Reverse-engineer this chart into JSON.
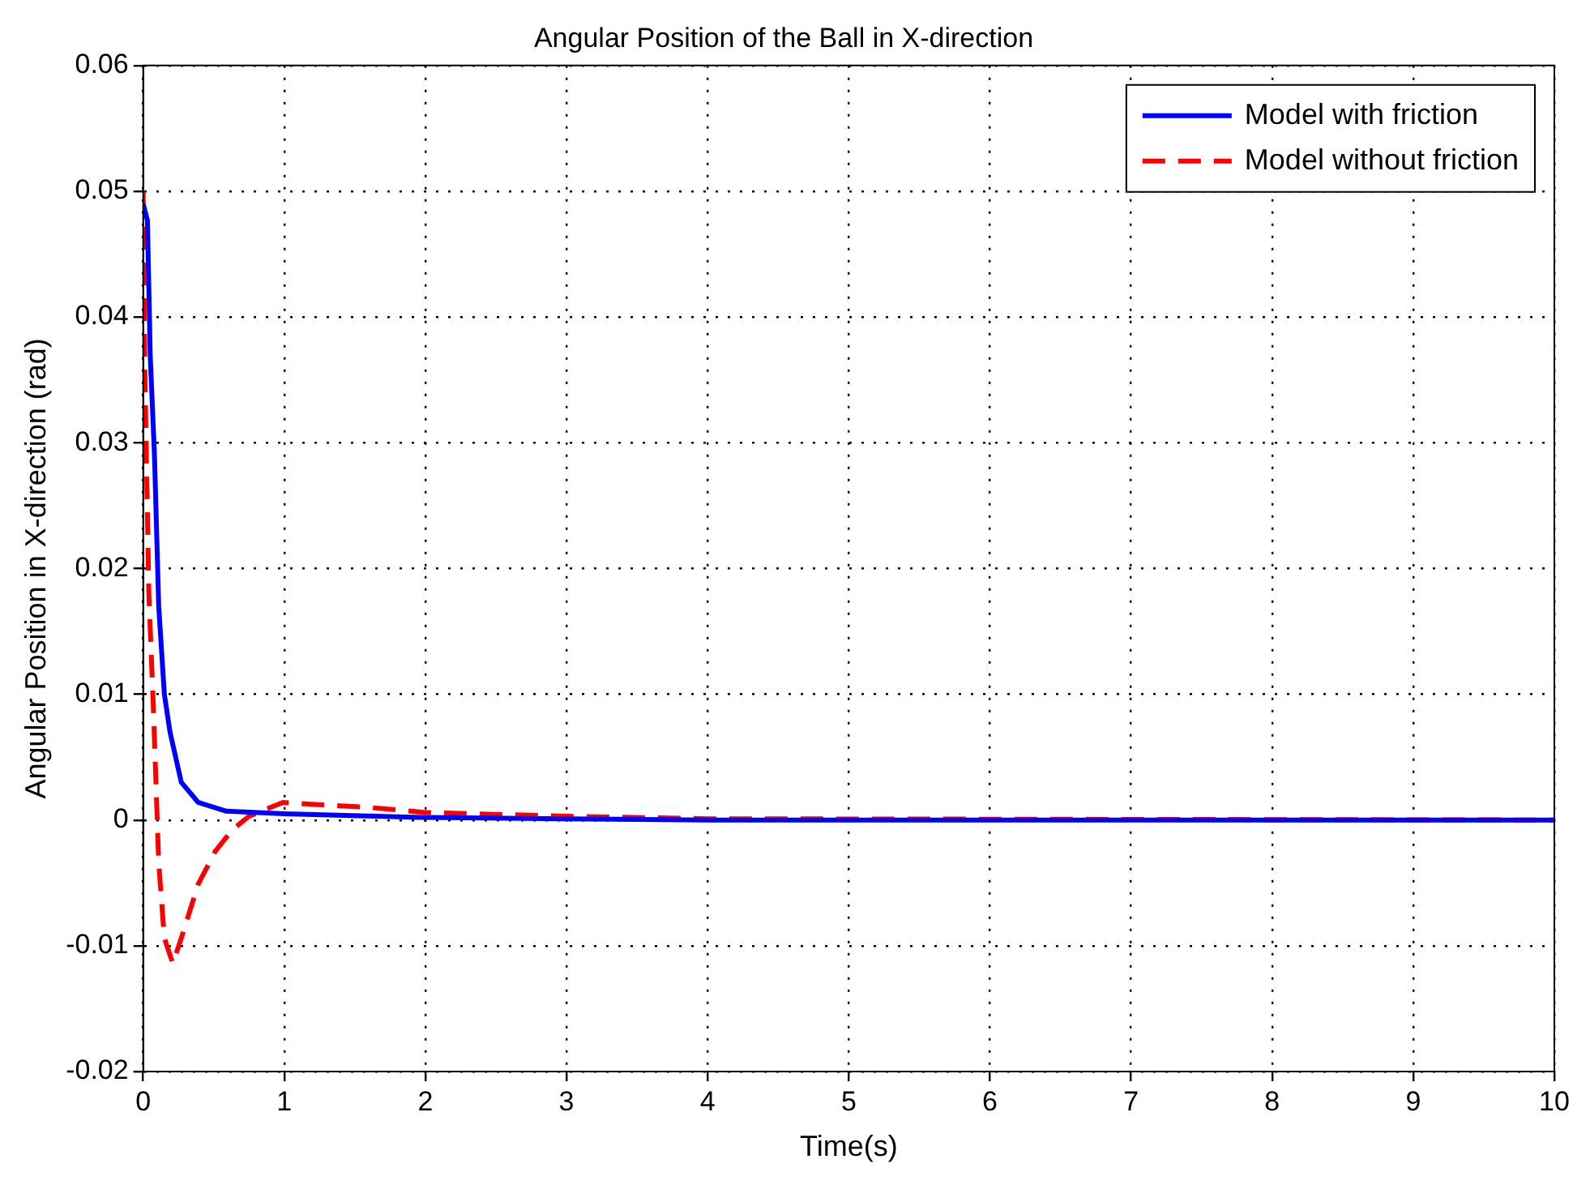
{
  "chart_data": {
    "type": "line",
    "title": "Angular Position of the Ball in X-direction",
    "xlabel": "Time(s)",
    "ylabel": "Angular Position in X-direction (rad)",
    "xlim": [
      0,
      10
    ],
    "xticks": [
      0,
      1,
      2,
      3,
      4,
      5,
      6,
      7,
      8,
      9,
      10
    ],
    "ylim": [
      -0.02,
      0.06
    ],
    "yticks": [
      -0.02,
      -0.01,
      0,
      0.01,
      0.02,
      0.03,
      0.04,
      0.05,
      0.06
    ],
    "grid": true,
    "legend": "top right",
    "series": [
      {
        "name": "Model with friction",
        "color": "#0000ff",
        "line_style": "solid",
        "x": [
          0,
          0.03,
          0.05,
          0.08,
          0.11,
          0.15,
          0.19,
          0.27,
          0.39,
          0.59,
          1,
          2,
          3,
          4,
          10
        ],
        "values": [
          0.049,
          0.0477,
          0.0369,
          0.029,
          0.017,
          0.01,
          0.007,
          0.003,
          0.0014,
          0.0007,
          0.0005,
          0.0002,
          0.0001,
          0,
          0
        ]
      },
      {
        "name": "Model without friction",
        "color": "#ff0000",
        "line_style": "dashed",
        "x": [
          0,
          0.012,
          0.04,
          0.07,
          0.11,
          0.15,
          0.21,
          0.27,
          0.39,
          0.51,
          0.63,
          0.75,
          0.99,
          1.27,
          1.6,
          2,
          3,
          4,
          10
        ],
        "values": [
          0.05,
          0.0356,
          0.018,
          0.0096,
          -0.0034,
          -0.0094,
          -0.0114,
          -0.0094,
          -0.0051,
          -0.0025,
          -0.0008,
          0.0003,
          0.0014,
          0.0012,
          0.001,
          0.0006,
          0.0003,
          0.0001,
          0
        ]
      }
    ]
  }
}
